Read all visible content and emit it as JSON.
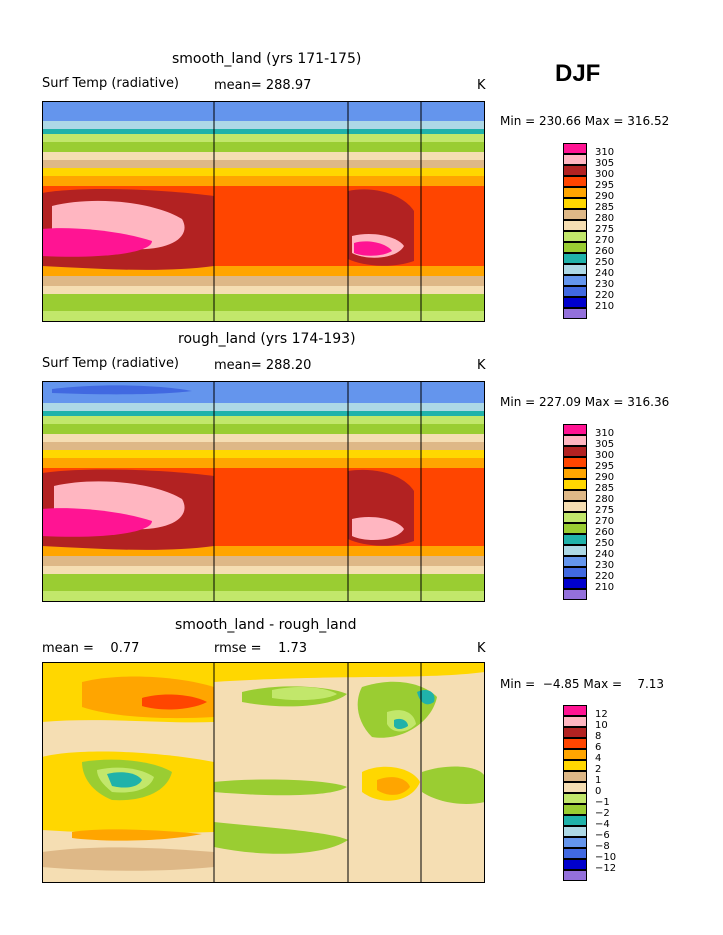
{
  "season": "DJF",
  "colors": {
    "abs": [
      "#9370db",
      "#0000cd",
      "#4169e1",
      "#6495ed",
      "#add8e6",
      "#20b2aa",
      "#9acd32",
      "#c2e76b",
      "#f5deb3",
      "#deb887",
      "#ffd700",
      "#ffa500",
      "#ff4500",
      "#b22222",
      "#ffb6c1",
      "#ff1493"
    ],
    "diff": [
      "#9370db",
      "#0000cd",
      "#4169e1",
      "#6495ed",
      "#add8e6",
      "#20b2aa",
      "#9acd32",
      "#c2e76b",
      "#f5deb3",
      "#deb887",
      "#ffd700",
      "#ffa500",
      "#ff4500",
      "#b22222",
      "#ffb6c1",
      "#ff1493"
    ]
  },
  "panels": [
    {
      "title": "smooth_land (yrs 171-175)",
      "left": "Surf Temp (radiative)",
      "mid": "mean= 288.97",
      "unit": "K",
      "stats": "Min = 230.66 Max = 316.52",
      "legend": [
        "310",
        "305",
        "300",
        "295",
        "290",
        "285",
        "280",
        "275",
        "270",
        "260",
        "250",
        "240",
        "230",
        "220",
        "210"
      ]
    },
    {
      "title": "rough_land (yrs 174-193)",
      "left": "Surf Temp (radiative)",
      "mid": "mean= 288.20",
      "unit": "K",
      "stats": "Min = 227.09 Max = 316.36",
      "legend": [
        "310",
        "305",
        "300",
        "295",
        "290",
        "285",
        "280",
        "275",
        "270",
        "260",
        "250",
        "240",
        "230",
        "220",
        "210"
      ]
    },
    {
      "title": "smooth_land - rough_land",
      "left": "mean =    0.77",
      "mid": "rmse =    1.73",
      "unit": "K",
      "stats": "Min =  −4.85 Max =    7.13",
      "legend": [
        "12",
        "10",
        "8",
        "6",
        "4",
        "2",
        "1",
        "0",
        "−1",
        "−2",
        "−4",
        "−6",
        "−8",
        "−10",
        "−12"
      ]
    }
  ],
  "chart_data": [
    {
      "type": "heatmap",
      "title": "smooth_land (yrs 171-175)",
      "subtitle": "Surf Temp (radiative)",
      "mean": 288.97,
      "min": 230.66,
      "max": 316.52,
      "unit": "K",
      "levels": [
        210,
        220,
        230,
        240,
        250,
        260,
        270,
        275,
        280,
        285,
        290,
        295,
        300,
        305,
        310
      ]
    },
    {
      "type": "heatmap",
      "title": "rough_land (yrs 174-193)",
      "subtitle": "Surf Temp (radiative)",
      "mean": 288.2,
      "min": 227.09,
      "max": 316.36,
      "unit": "K",
      "levels": [
        210,
        220,
        230,
        240,
        250,
        260,
        270,
        275,
        280,
        285,
        290,
        295,
        300,
        305,
        310
      ]
    },
    {
      "type": "heatmap",
      "title": "smooth_land - rough_land",
      "mean": 0.77,
      "rmse": 1.73,
      "min": -4.85,
      "max": 7.13,
      "unit": "K",
      "levels": [
        -12,
        -10,
        -8,
        -6,
        -4,
        -2,
        -1,
        0,
        1,
        2,
        4,
        6,
        8,
        10,
        12
      ]
    }
  ]
}
